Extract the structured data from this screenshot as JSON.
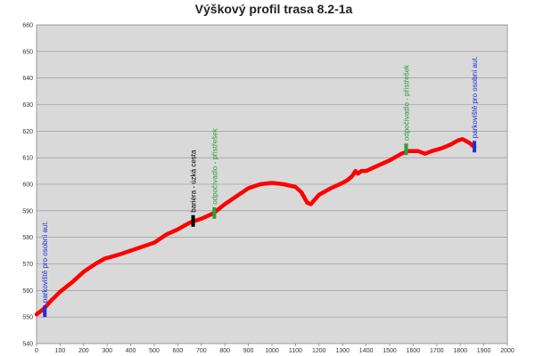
{
  "chart_data": {
    "type": "line",
    "title": "Výškový profil trasa 8.2-1a",
    "xlabel": "",
    "ylabel": "",
    "xlim": [
      0,
      2000
    ],
    "ylim": [
      540,
      660
    ],
    "x_ticks": [
      "0",
      "100",
      "200",
      "300",
      "400",
      "500",
      "600",
      "700",
      "800",
      "900",
      "1000",
      "1100",
      "1200",
      "1300",
      "1400",
      "1500",
      "1600",
      "1700",
      "1800",
      "1900",
      "2000"
    ],
    "y_ticks": [
      "540",
      "550",
      "560",
      "570",
      "580",
      "590",
      "600",
      "610",
      "620",
      "630",
      "640",
      "650",
      "660"
    ],
    "grid": true,
    "series": [
      {
        "color": "#ff0000",
        "points": [
          [
            0,
            551
          ],
          [
            30,
            553
          ],
          [
            60,
            556
          ],
          [
            100,
            559.5
          ],
          [
            150,
            563
          ],
          [
            200,
            567
          ],
          [
            250,
            570
          ],
          [
            290,
            572
          ],
          [
            350,
            573.5
          ],
          [
            400,
            575
          ],
          [
            450,
            576.5
          ],
          [
            500,
            578
          ],
          [
            550,
            581
          ],
          [
            600,
            583
          ],
          [
            650,
            585.5
          ],
          [
            700,
            587
          ],
          [
            750,
            589
          ],
          [
            800,
            592.5
          ],
          [
            850,
            595.5
          ],
          [
            900,
            598.5
          ],
          [
            950,
            600
          ],
          [
            1000,
            600.5
          ],
          [
            1050,
            600
          ],
          [
            1100,
            599
          ],
          [
            1125,
            597
          ],
          [
            1150,
            593
          ],
          [
            1165,
            592.5
          ],
          [
            1180,
            594
          ],
          [
            1200,
            596
          ],
          [
            1250,
            598.5
          ],
          [
            1300,
            600.5
          ],
          [
            1320,
            601.5
          ],
          [
            1340,
            603
          ],
          [
            1355,
            605
          ],
          [
            1365,
            604
          ],
          [
            1380,
            605
          ],
          [
            1400,
            605
          ],
          [
            1450,
            607
          ],
          [
            1500,
            609
          ],
          [
            1550,
            611.5
          ],
          [
            1580,
            612.5
          ],
          [
            1620,
            612.5
          ],
          [
            1650,
            611.5
          ],
          [
            1680,
            612.5
          ],
          [
            1720,
            613.5
          ],
          [
            1760,
            615
          ],
          [
            1790,
            616.5
          ],
          [
            1810,
            617
          ],
          [
            1840,
            615.5
          ],
          [
            1860,
            614
          ]
        ]
      }
    ],
    "annotations": [
      {
        "x": 35,
        "y": 552,
        "label": "parkoviště pro osobní aut.",
        "color": "#1f2fd6"
      },
      {
        "x": 665,
        "y": 586,
        "label": "bariéra - úzká cesta",
        "color": "#000000"
      },
      {
        "x": 755,
        "y": 589,
        "label": "odpočívadlo - přístřešek",
        "color": "#2e9e3a"
      },
      {
        "x": 1570,
        "y": 613,
        "label": "odpočívadlo - přístřešek",
        "color": "#2e9e3a"
      },
      {
        "x": 1860,
        "y": 614,
        "label": "parkoviště pro osobní aut.",
        "color": "#1f2fd6"
      }
    ],
    "plot_background": "#d9d9d9",
    "line_color": "#ff0000"
  }
}
